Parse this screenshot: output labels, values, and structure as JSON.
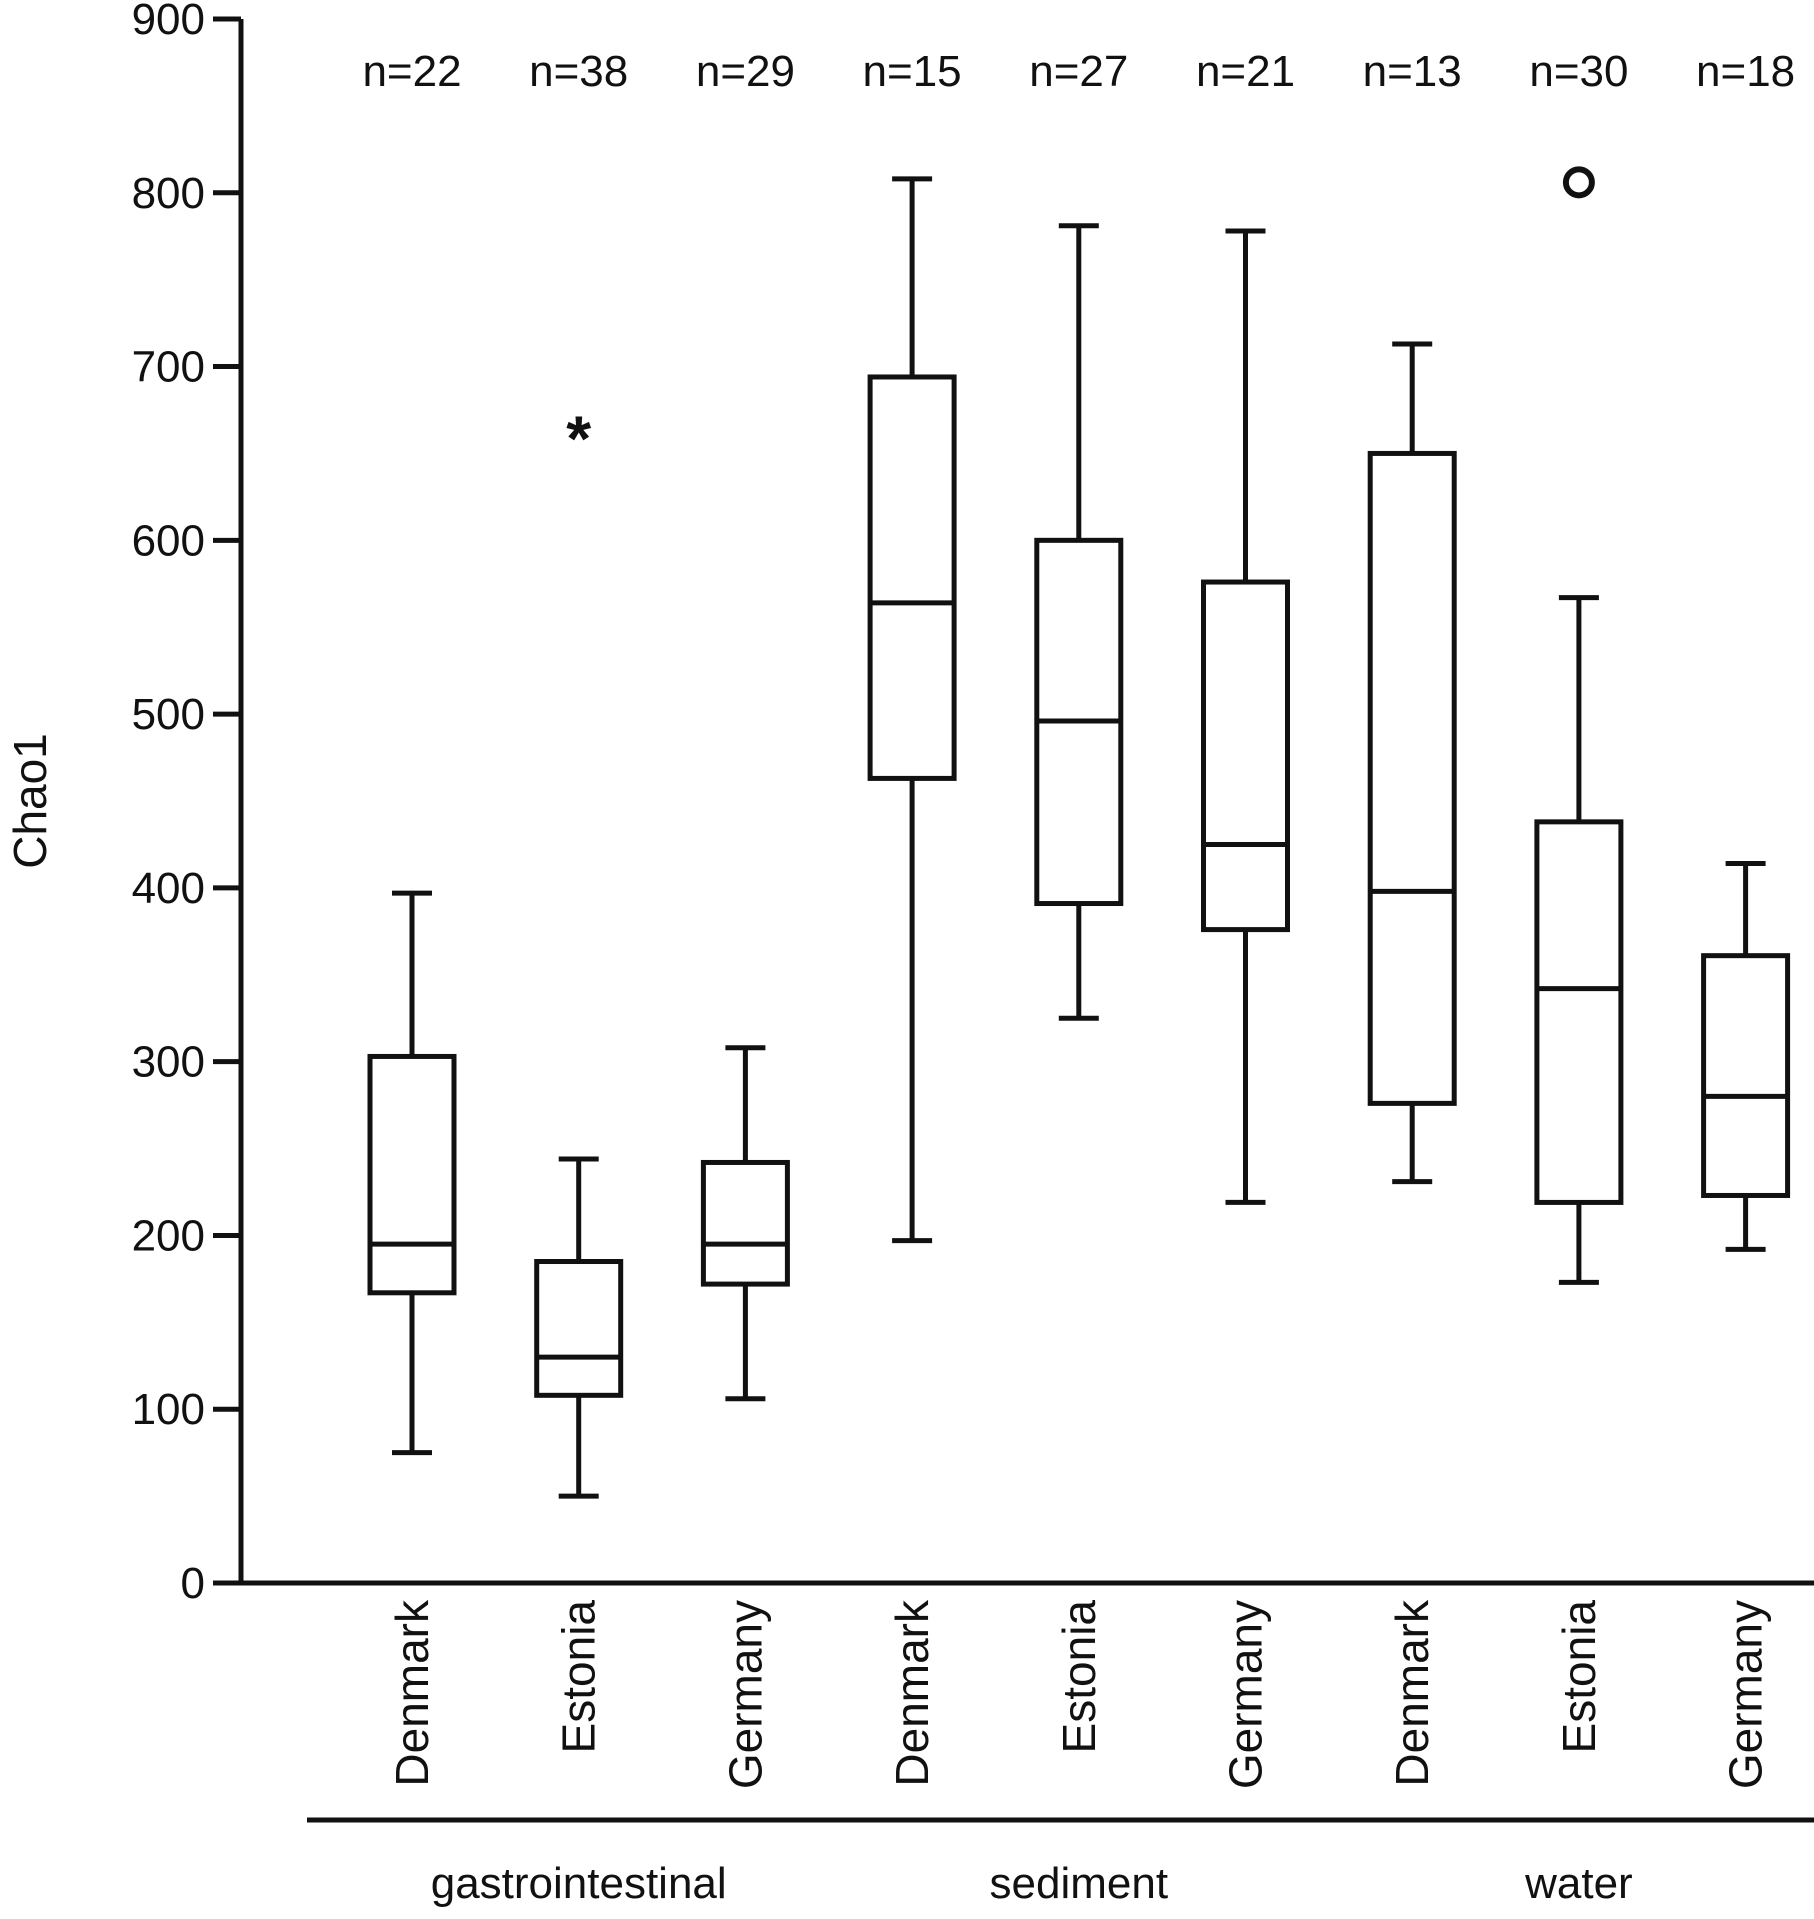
{
  "chart_data": {
    "type": "boxplot",
    "title": "",
    "xlabel": "",
    "ylabel": "Chao1",
    "ylim": [
      0,
      900
    ],
    "yticks": [
      0,
      100,
      200,
      300,
      400,
      500,
      600,
      700,
      800,
      900
    ],
    "ytick_labels": [
      "0",
      "100",
      "200",
      "300",
      "400",
      "500",
      "600",
      "700",
      "800",
      "900"
    ],
    "grid": false,
    "groups": [
      {
        "label": "gastrointestinal",
        "boxes": [
          {
            "category": "Denmark",
            "n_label": "n=22",
            "whisker_low": 75,
            "q1": 167,
            "median": 195,
            "q3": 303,
            "whisker_high": 397,
            "outliers": []
          },
          {
            "category": "Estonia",
            "n_label": "n=38",
            "whisker_low": 50,
            "q1": 108,
            "median": 130,
            "q3": 185,
            "whisker_high": 244,
            "outliers": [
              {
                "value": 661,
                "marker": "star"
              }
            ]
          },
          {
            "category": "Germany",
            "n_label": "n=29",
            "whisker_low": 106,
            "q1": 172,
            "median": 195,
            "q3": 242,
            "whisker_high": 308,
            "outliers": []
          }
        ]
      },
      {
        "label": "sediment",
        "boxes": [
          {
            "category": "Denmark",
            "n_label": "n=15",
            "whisker_low": 197,
            "q1": 463,
            "median": 564,
            "q3": 694,
            "whisker_high": 808,
            "outliers": []
          },
          {
            "category": "Estonia",
            "n_label": "n=27",
            "whisker_low": 325,
            "q1": 391,
            "median": 496,
            "q3": 600,
            "whisker_high": 781,
            "outliers": []
          },
          {
            "category": "Germany",
            "n_label": "n=21",
            "whisker_low": 219,
            "q1": 376,
            "median": 425,
            "q3": 576,
            "whisker_high": 778,
            "outliers": []
          }
        ]
      },
      {
        "label": "water",
        "boxes": [
          {
            "category": "Denmark",
            "n_label": "n=13",
            "whisker_low": 231,
            "q1": 276,
            "median": 398,
            "q3": 650,
            "whisker_high": 713,
            "outliers": []
          },
          {
            "category": "Estonia",
            "n_label": "n=30",
            "whisker_low": 173,
            "q1": 219,
            "median": 342,
            "q3": 438,
            "whisker_high": 567,
            "outliers": [
              {
                "value": 806,
                "marker": "circle"
              }
            ]
          },
          {
            "category": "Germany",
            "n_label": "n=18",
            "whisker_low": 192,
            "q1": 223,
            "median": 280,
            "q3": 361,
            "whisker_high": 414,
            "outliers": []
          }
        ]
      }
    ]
  }
}
